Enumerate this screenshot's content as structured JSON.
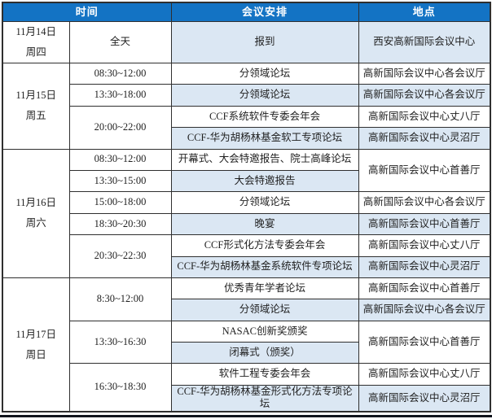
{
  "header": {
    "time": "时间",
    "arrangement": "会议安排",
    "venue": "地点"
  },
  "days": [
    {
      "date": "11月14日",
      "weekday": "周四",
      "rows": [
        {
          "time": "全天",
          "event": "报到",
          "venue": "西安高新国际会议中心"
        }
      ]
    },
    {
      "date": "11月15日",
      "weekday": "周五",
      "rows": [
        {
          "time": "08:30~12:00",
          "event": "分领域论坛",
          "venue": "高新国际会议中心各会议厅"
        },
        {
          "time": "13:30~18:00",
          "event": "分领域论坛",
          "venue": "高新国际会议中心各会议厅"
        },
        {
          "time": "20:00~22:00",
          "event": "CCF系统软件专委会年会",
          "venue": "高新国际会议中心丈八厅"
        },
        {
          "event": "CCF-华为胡杨林基金软工专项论坛",
          "venue": "高新国际会议中心灵沼厅"
        }
      ]
    },
    {
      "date": "11月16日",
      "weekday": "周六",
      "rows": [
        {
          "time": "08:30~12:00",
          "event": "开幕式、大会特邀报告、院士高峰论坛",
          "venue": "高新国际会议中心首善厅"
        },
        {
          "time": "13:30~15:00",
          "event": "大会特邀报告"
        },
        {
          "time": "15:00~18:00",
          "event": "分领域论坛",
          "venue": "高新国际会议中心各会议厅"
        },
        {
          "time": "18:30~20:30",
          "event": "晚宴",
          "venue": "高新国际会议中心首善厅"
        },
        {
          "time": "20:30~22:30",
          "event": "CCF形式化方法专委会年会",
          "venue": "高新国际会议中心丈八厅"
        },
        {
          "event": "CCF-华为胡杨林基金系统软件专项论坛",
          "venue": "高新国际会议中心灵沼厅"
        }
      ]
    },
    {
      "date": "11月17日",
      "weekday": "周日",
      "rows": [
        {
          "time": "8:30~12:00",
          "event": "优秀青年学者论坛",
          "venue": "高新国际会议中心首善厅"
        },
        {
          "event": "分领域论坛",
          "venue": "高新国际会议中心各会议厅"
        },
        {
          "time": "13:30~16:30",
          "event": "NASAC创新奖颁奖",
          "venue": "高新国际会议中心首善厅"
        },
        {
          "event": "闭幕式（颁奖）"
        },
        {
          "time": "16:30~18:30",
          "event": "软件工程专委会年会",
          "venue": "高新国际会议中心丈八厅"
        },
        {
          "event": "CCF-华为胡杨林基金形式化方法专项论坛",
          "venue": "高新国际会议中心灵沼厅"
        }
      ]
    }
  ],
  "colors": {
    "header_bg": "#1373c4",
    "header_text": "#ffffff",
    "alt_row_bg": "#dbe7f3",
    "border": "#2f2f2f",
    "bottom_rule": "#10141c"
  }
}
